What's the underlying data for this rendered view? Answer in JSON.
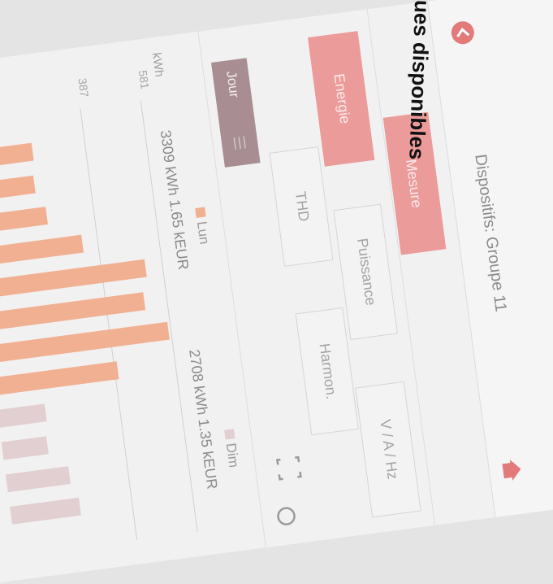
{
  "overlay_text": "ues disponibles",
  "header": {
    "title": "Dispositifs: Groupe 11"
  },
  "tab": "Mesure",
  "buttons": [
    "Energie",
    "Puissance",
    "V / A / Hz",
    "THD",
    "Harmon."
  ],
  "period": "Jour",
  "chart_data": {
    "type": "bar",
    "y_axis_label": "kWh",
    "summaries": [
      "3309 kWh 1.65 kEUR",
      "2708 kWh 1.35 kEUR"
    ],
    "categories": [
      null,
      null,
      null,
      null,
      null,
      null,
      null,
      null,
      null,
      null,
      null,
      null
    ],
    "series": [
      {
        "name": "Lun",
        "color": "#f1b092",
        "values": [
          219,
          211,
          237,
          338,
          527,
          509,
          573,
          397,
          null,
          null,
          null,
          null
        ]
      },
      {
        "name": "Dim",
        "color": "#e2cfd1",
        "values": [
          null,
          null,
          null,
          null,
          null,
          null,
          null,
          null,
          152,
          144,
          201,
          221
        ]
      }
    ],
    "ylim": [
      0,
      581
    ],
    "yticks": [
      387,
      581
    ],
    "grid": true
  }
}
